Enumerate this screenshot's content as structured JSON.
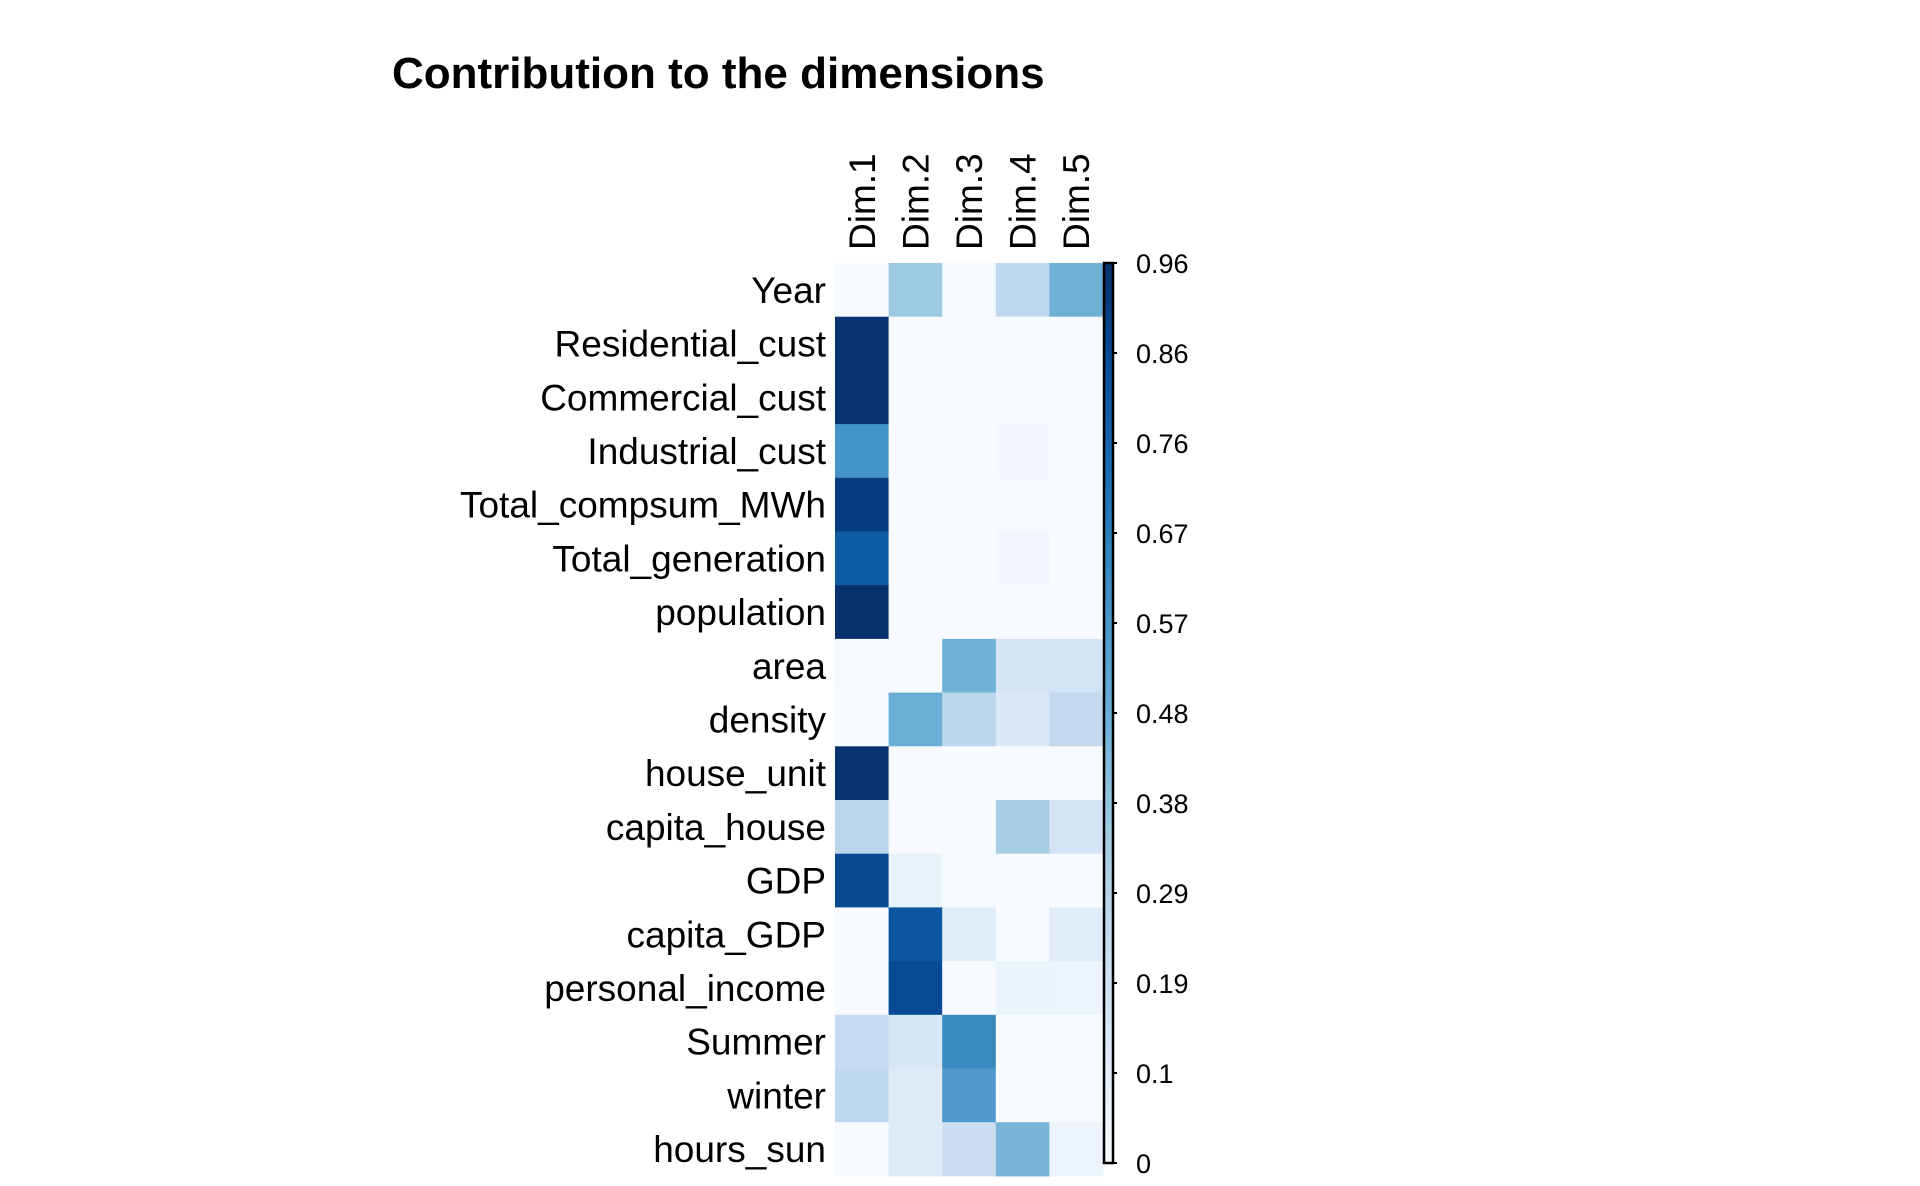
{
  "chart_data": {
    "type": "heatmap",
    "title": "Contribution to the dimensions",
    "columns": [
      "Dim.1",
      "Dim.2",
      "Dim.3",
      "Dim.4",
      "Dim.5"
    ],
    "rows": [
      "Year",
      "Residential_cust",
      "Commercial_cust",
      "Industrial_cust",
      "Total_compsum_MWh",
      "Total_generation",
      "population",
      "area",
      "density",
      "house_unit",
      "capita_house",
      "GDP",
      "capita_GDP",
      "personal_income",
      "Summer",
      "winter",
      "hours_sun"
    ],
    "values": [
      [
        0.0,
        0.36,
        0.01,
        0.26,
        0.47
      ],
      [
        0.95,
        0.0,
        0.0,
        0.0,
        0.0
      ],
      [
        0.95,
        0.0,
        0.0,
        0.0,
        0.0
      ],
      [
        0.59,
        0.0,
        0.01,
        0.02,
        0.01
      ],
      [
        0.91,
        0.0,
        0.0,
        0.01,
        0.0
      ],
      [
        0.8,
        0.01,
        0.0,
        0.03,
        0.0
      ],
      [
        0.96,
        0.0,
        0.0,
        0.0,
        0.0
      ],
      [
        0.01,
        0.0,
        0.47,
        0.17,
        0.18
      ],
      [
        0.0,
        0.48,
        0.27,
        0.14,
        0.25
      ],
      [
        0.95,
        0.0,
        0.0,
        0.0,
        0.0
      ],
      [
        0.27,
        0.0,
        0.0,
        0.33,
        0.17
      ],
      [
        0.87,
        0.07,
        0.01,
        0.0,
        0.0
      ],
      [
        0.0,
        0.82,
        0.11,
        0.0,
        0.11
      ],
      [
        0.0,
        0.86,
        0.0,
        0.06,
        0.05
      ],
      [
        0.24,
        0.16,
        0.63,
        0.0,
        0.0
      ],
      [
        0.26,
        0.12,
        0.56,
        0.0,
        0.0
      ],
      [
        0.0,
        0.12,
        0.21,
        0.45,
        0.05
      ]
    ],
    "colorbar": {
      "min": 0,
      "max": 0.96,
      "ticks": [
        "0",
        "0.1",
        "0.19",
        "0.29",
        "0.38",
        "0.48",
        "0.57",
        "0.67",
        "0.76",
        "0.86",
        "0.96"
      ],
      "colormap": "Blues",
      "placement": "right"
    },
    "colors": {
      "low": "#f7fbff",
      "high": "#08306b"
    }
  }
}
